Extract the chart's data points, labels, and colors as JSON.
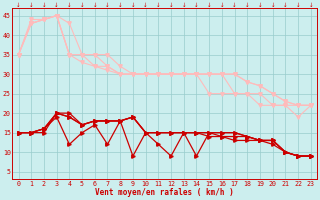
{
  "x": [
    0,
    1,
    2,
    3,
    4,
    5,
    6,
    7,
    8,
    9,
    10,
    11,
    12,
    13,
    14,
    15,
    16,
    17,
    18,
    19,
    20,
    21,
    22,
    23
  ],
  "series_light": [
    [
      35,
      44,
      44,
      45,
      35,
      35,
      35,
      32,
      30,
      30,
      30,
      30,
      30,
      30,
      30,
      30,
      30,
      30,
      28,
      27,
      25,
      23,
      22,
      22
    ],
    [
      35,
      43,
      44,
      45,
      35,
      35,
      32,
      31,
      30,
      30,
      30,
      30,
      30,
      30,
      30,
      30,
      30,
      25,
      25,
      25,
      22,
      22,
      19,
      22
    ],
    [
      35,
      43,
      44,
      45,
      35,
      33,
      32,
      32,
      30,
      30,
      30,
      30,
      30,
      30,
      30,
      25,
      25,
      25,
      25,
      22,
      22,
      22,
      22,
      22
    ],
    [
      35,
      43,
      44,
      45,
      43,
      35,
      35,
      35,
      32,
      30,
      30,
      30,
      30,
      30,
      30,
      30,
      30,
      30,
      28,
      27,
      25,
      23,
      22,
      22
    ]
  ],
  "series_dark": [
    [
      15,
      15,
      15,
      20,
      19,
      17,
      18,
      18,
      18,
      19,
      15,
      15,
      15,
      15,
      15,
      15,
      15,
      15,
      14,
      13,
      13,
      10,
      9,
      9
    ],
    [
      15,
      15,
      16,
      19,
      12,
      15,
      17,
      12,
      18,
      9,
      15,
      12,
      9,
      15,
      9,
      15,
      14,
      13,
      13,
      13,
      13,
      10,
      9,
      9
    ],
    [
      15,
      15,
      16,
      20,
      20,
      17,
      18,
      18,
      18,
      19,
      15,
      15,
      15,
      15,
      15,
      15,
      15,
      15,
      14,
      13,
      13,
      10,
      9,
      9
    ],
    [
      15,
      15,
      16,
      20,
      19,
      17,
      18,
      18,
      18,
      19,
      15,
      15,
      15,
      15,
      15,
      14,
      14,
      14,
      14,
      13,
      12,
      10,
      9,
      9
    ]
  ],
  "bg_color": "#cceeee",
  "grid_color": "#99cccc",
  "light_color": "#ffbbbb",
  "dark_color": "#cc0000",
  "xlabel": "Vent moyen/en rafales ( km/h )",
  "yticks": [
    5,
    10,
    15,
    20,
    25,
    30,
    35,
    40,
    45
  ],
  "ylim": [
    3,
    47
  ],
  "xlim": [
    -0.5,
    23.5
  ]
}
